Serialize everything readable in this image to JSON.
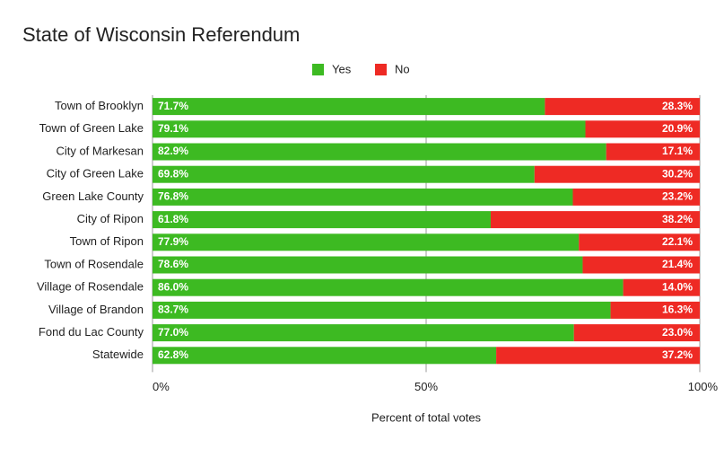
{
  "chart_data": {
    "type": "stacked-bar-horizontal",
    "title": "State of Wisconsin Referendum",
    "x_label": "Percent of total votes",
    "categories": [
      "Town of Brooklyn",
      "Town of Green Lake",
      "City of Markesan",
      "City of Green Lake",
      "Green Lake County",
      "City of Ripon",
      "Town of Ripon",
      "Town of Rosendale",
      "Village of Rosendale",
      "Village of Brandon",
      "Fond du Lac County",
      "Statewide"
    ],
    "series": [
      {
        "name": "Yes",
        "color": "#3dba22",
        "values": [
          71.7,
          79.1,
          82.9,
          69.8,
          76.8,
          61.8,
          77.9,
          78.6,
          86.0,
          83.7,
          77.0,
          62.8
        ],
        "value_labels": [
          "71.7%",
          "79.1%",
          "82.9%",
          "69.8%",
          "76.8%",
          "61.8%",
          "77.9%",
          "78.6%",
          "86.0%",
          "83.7%",
          "77.0%",
          "62.8%"
        ]
      },
      {
        "name": "No",
        "color": "#ee2a24",
        "values": [
          28.3,
          20.9,
          17.1,
          30.2,
          23.2,
          38.2,
          22.1,
          21.4,
          14.0,
          16.3,
          23.0,
          37.2
        ],
        "value_labels": [
          "28.3%",
          "20.9%",
          "17.1%",
          "30.2%",
          "23.2%",
          "38.2%",
          "22.1%",
          "21.4%",
          "14.0%",
          "16.3%",
          "23.0%",
          "37.2%"
        ]
      }
    ],
    "xlim": [
      0,
      100
    ],
    "xticks": [
      {
        "value": 0,
        "label": "0%"
      },
      {
        "value": 50,
        "label": "50%"
      },
      {
        "value": 100,
        "label": "100%"
      }
    ],
    "grid": true,
    "legend": "top"
  }
}
